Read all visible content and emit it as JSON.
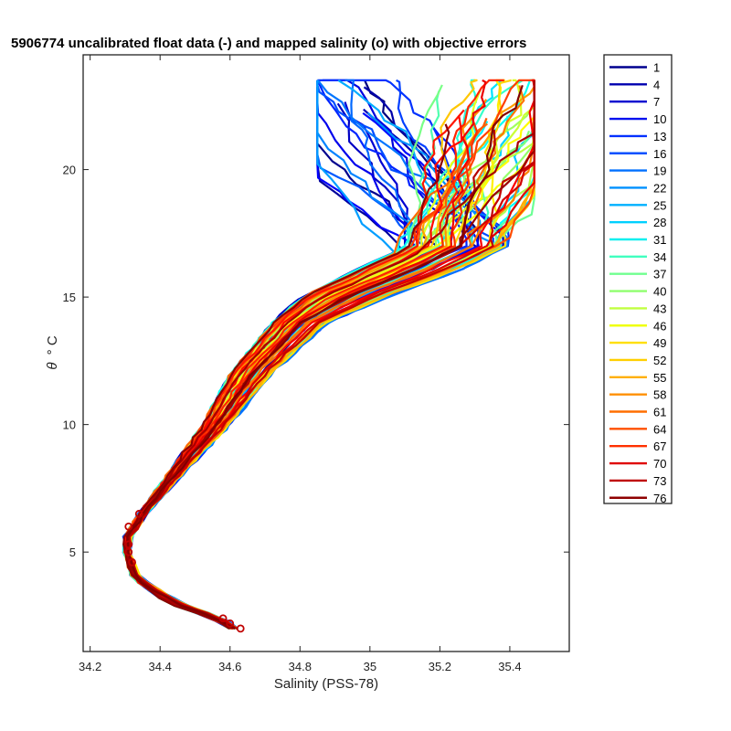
{
  "chart_data": {
    "type": "line",
    "title": "5906774 uncalibrated float data (-) and mapped salinity (o) with objective errors",
    "xlabel": "Salinity (PSS-78)",
    "ylabel_symbol": "θ",
    "ylabel_unit": "° C",
    "xlim": [
      34.18,
      35.57
    ],
    "ylim": [
      1.1,
      24.5
    ],
    "x_ticks": [
      34.2,
      34.4,
      34.6,
      34.8,
      35,
      35.2,
      35.4
    ],
    "x_tick_labels": [
      "34.2",
      "34.4",
      "34.6",
      "34.8",
      "35",
      "35.2",
      "35.4"
    ],
    "y_ticks": [
      5,
      10,
      15,
      20
    ],
    "y_tick_labels": [
      "5",
      "10",
      "15",
      "20"
    ],
    "grid": false,
    "legend_position": "outside-right",
    "colormap": "jet",
    "legend": [
      "1",
      "4",
      "7",
      "10",
      "13",
      "16",
      "19",
      "22",
      "25",
      "28",
      "31",
      "34",
      "37",
      "40",
      "43",
      "46",
      "49",
      "52",
      "55",
      "58",
      "61",
      "64",
      "67",
      "70",
      "73",
      "76"
    ],
    "legend_colors": [
      "#00008f",
      "#0000af",
      "#0000cf",
      "#0010ef",
      "#0030ff",
      "#0050ff",
      "#0070ff",
      "#0090ff",
      "#00b0ff",
      "#00d0ff",
      "#10efef",
      "#40ffbf",
      "#70ff8f",
      "#90ff6f",
      "#c0ff40",
      "#efff10",
      "#ffdf00",
      "#ffcf00",
      "#ffaf00",
      "#ff8f00",
      "#ff6f00",
      "#ff4f00",
      "#ff3000",
      "#df0000",
      "#bf0000",
      "#8f0000"
    ],
    "profile_count": 76,
    "envelope": {
      "theta": [
        2.0,
        2.4,
        3.0,
        4.0,
        5.0,
        5.6,
        6.5,
        8.0,
        10.0,
        12.0,
        14.0,
        15.0,
        16.0,
        17.0
      ],
      "salinity_lo": [
        34.6,
        34.55,
        34.42,
        34.32,
        34.3,
        34.3,
        34.34,
        34.42,
        34.52,
        34.6,
        34.72,
        34.8,
        34.95,
        35.1
      ],
      "salinity_hi": [
        34.62,
        34.58,
        34.46,
        34.34,
        34.31,
        34.32,
        34.36,
        34.46,
        34.6,
        34.72,
        34.88,
        35.05,
        35.25,
        35.4
      ]
    },
    "mapped_salinity_points": [
      {
        "salinity": 34.63,
        "theta": 2.0
      },
      {
        "salinity": 34.6,
        "theta": 2.2
      },
      {
        "salinity": 34.58,
        "theta": 2.4
      },
      {
        "salinity": 34.32,
        "theta": 4.6
      },
      {
        "salinity": 34.31,
        "theta": 5.0
      },
      {
        "salinity": 34.31,
        "theta": 5.3
      },
      {
        "salinity": 34.31,
        "theta": 6.0
      },
      {
        "salinity": 34.34,
        "theta": 6.5
      }
    ]
  }
}
